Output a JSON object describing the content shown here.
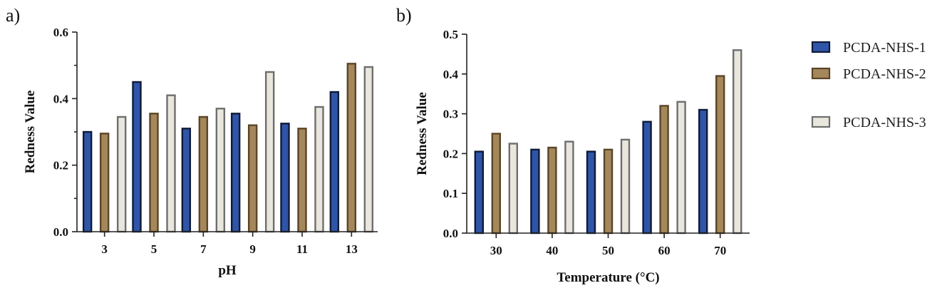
{
  "legend": {
    "series_names": [
      "PCDA-NHS-1",
      "PCDA-NHS-2",
      "PCDA-NHS-3"
    ]
  },
  "colors": {
    "series_fill": [
      "#2f55a8",
      "#a4885c",
      "#e9e6dd"
    ],
    "series_stroke": [
      "#0f1a38",
      "#5b4526",
      "#6e6e6e"
    ],
    "axis": "#222222"
  },
  "chart_data": [
    {
      "type": "bar",
      "panel_label": "a)",
      "title": "",
      "xlabel": "pH",
      "ylabel": "Redness Value",
      "ylim": [
        0,
        0.6
      ],
      "yticks": [
        0.0,
        0.2,
        0.4,
        0.6
      ],
      "ytick_labels": [
        "0.0",
        "0.2",
        "0.4",
        "0.6"
      ],
      "categories": [
        "3",
        "5",
        "7",
        "9",
        "11",
        "13"
      ],
      "series": [
        {
          "name": "PCDA-NHS-1",
          "values": [
            0.3,
            0.45,
            0.31,
            0.355,
            0.325,
            0.42
          ]
        },
        {
          "name": "PCDA-NHS-2",
          "values": [
            0.295,
            0.355,
            0.345,
            0.32,
            0.31,
            0.505
          ]
        },
        {
          "name": "PCDA-NHS-3",
          "values": [
            0.345,
            0.41,
            0.37,
            0.48,
            0.375,
            0.495
          ]
        }
      ],
      "grid": false,
      "legend": "right"
    },
    {
      "type": "bar",
      "panel_label": "b)",
      "title": "",
      "xlabel": "Temperature (°C)",
      "ylabel": "Redness Value",
      "ylim": [
        0,
        0.5
      ],
      "yticks": [
        0.0,
        0.1,
        0.2,
        0.3,
        0.4,
        0.5
      ],
      "ytick_labels": [
        "0.0",
        "0.1",
        "0.2",
        "0.3",
        "0.4",
        "0.5"
      ],
      "categories": [
        "30",
        "40",
        "50",
        "60",
        "70"
      ],
      "series": [
        {
          "name": "PCDA-NHS-1",
          "values": [
            0.205,
            0.21,
            0.205,
            0.28,
            0.31
          ]
        },
        {
          "name": "PCDA-NHS-2",
          "values": [
            0.25,
            0.215,
            0.21,
            0.32,
            0.395
          ]
        },
        {
          "name": "PCDA-NHS-3",
          "values": [
            0.225,
            0.23,
            0.235,
            0.33,
            0.46
          ]
        }
      ],
      "grid": false,
      "legend": "right"
    }
  ]
}
